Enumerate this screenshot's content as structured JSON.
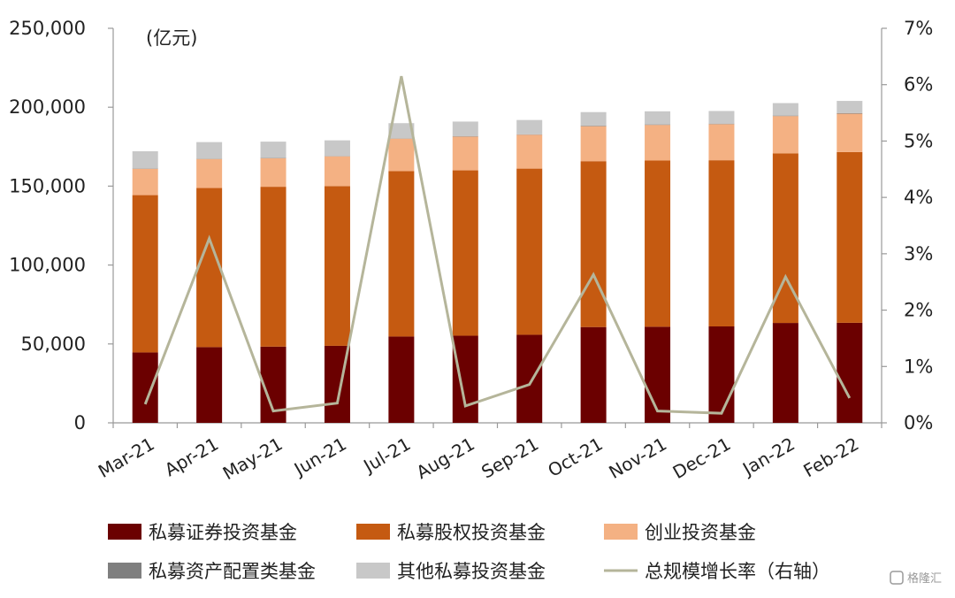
{
  "chart_data": {
    "type": "bar",
    "stacked": true,
    "unit_label": "(亿元)",
    "categories": [
      "Mar-21",
      "Apr-21",
      "May-21",
      "Jun-21",
      "Jul-21",
      "Aug-21",
      "Sep-21",
      "Oct-21",
      "Nov-21",
      "Dec-21",
      "Jan-22",
      "Feb-22"
    ],
    "ylim": [
      0,
      250000
    ],
    "yticks": [
      "0",
      "50,000",
      "100,000",
      "150,000",
      "200,000",
      "250,000"
    ],
    "y2lim": [
      0,
      7
    ],
    "y2ticks": [
      "0%",
      "1%",
      "2%",
      "3%",
      "4%",
      "5%",
      "6%",
      "7%"
    ],
    "grid": false,
    "legend_position": "bottom",
    "series": [
      {
        "name": "私募证券投资基金",
        "color": "#6b0000",
        "values": [
          44600,
          48000,
          48300,
          48800,
          54700,
          55200,
          55800,
          60700,
          60900,
          61100,
          63300,
          63400
        ]
      },
      {
        "name": "私募股权投资基金",
        "color": "#c55a11",
        "values": [
          99700,
          100800,
          101300,
          101200,
          104800,
          104800,
          105300,
          105100,
          105300,
          105300,
          107400,
          108200
        ]
      },
      {
        "name": "创业投资基金",
        "color": "#f4b183",
        "values": [
          16700,
          18400,
          18100,
          18900,
          20600,
          21400,
          21500,
          22200,
          22600,
          22900,
          23700,
          24300
        ]
      },
      {
        "name": "私募资产配置类基金",
        "color": "#7f7f7f",
        "values": [
          200,
          200,
          200,
          200,
          200,
          200,
          200,
          300,
          300,
          300,
          300,
          300
        ]
      },
      {
        "name": "其他私募投资基金",
        "color": "#c8c8c8",
        "values": [
          10900,
          10500,
          10300,
          9900,
          9600,
          9300,
          9100,
          8600,
          8300,
          8000,
          7900,
          7800
        ]
      }
    ],
    "line_series": {
      "name": "总规模增长率（右轴）",
      "color": "#b5b59a",
      "axis": "right",
      "values": [
        0.33,
        3.27,
        0.21,
        0.35,
        6.15,
        0.3,
        0.68,
        2.63,
        0.21,
        0.17,
        2.59,
        0.44
      ]
    }
  },
  "watermark": "格隆汇"
}
